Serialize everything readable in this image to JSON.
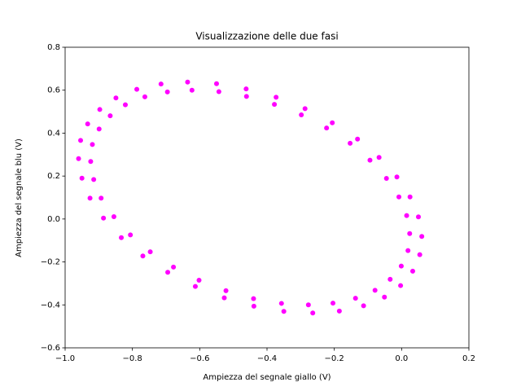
{
  "chart_data": {
    "type": "scatter",
    "title": "Visualizzazione delle due fasi",
    "xlabel": "Ampiezza del segnale giallo (V)",
    "ylabel": "Ampiezza del segnale blu (V)",
    "color": "#ff00ff",
    "xlim": [
      -1.0,
      0.2
    ],
    "ylim": [
      -0.6,
      0.8
    ],
    "xticks": [
      {
        "value": -1.0,
        "label": "−1.0"
      },
      {
        "value": -0.8,
        "label": "−0.8"
      },
      {
        "value": -0.6,
        "label": "−0.6"
      },
      {
        "value": -0.4,
        "label": "−0.4"
      },
      {
        "value": -0.2,
        "label": "−0.2"
      },
      {
        "value": 0.0,
        "label": "0.0"
      },
      0.2
    ],
    "yticks": [
      {
        "value": -0.6,
        "label": "−0.6"
      },
      {
        "value": -0.4,
        "label": "−0.4"
      },
      {
        "value": -0.2,
        "label": "−0.2"
      },
      {
        "value": 0.0,
        "label": "0.0"
      },
      0.2,
      0.4,
      0.6,
      0.8
    ],
    "x": [
      0.05,
      0.025,
      -0.014,
      -0.067,
      -0.131,
      -0.206,
      -0.287,
      -0.373,
      -0.462,
      -0.55,
      -0.636,
      -0.715,
      -0.787,
      -0.849,
      -0.897,
      -0.933,
      -0.954,
      -0.96,
      -0.95,
      -0.926,
      -0.886,
      -0.833,
      -0.769,
      -0.695,
      -0.613,
      -0.527,
      -0.439,
      -0.35,
      -0.264,
      -0.185,
      -0.113,
      -0.051,
      -0.003,
      0.033,
      0.054,
      0.06,
      0.015,
      -0.008,
      -0.045,
      -0.094,
      -0.153,
      -0.223,
      -0.298,
      -0.378,
      -0.461,
      -0.543,
      -0.623,
      -0.696,
      -0.763,
      -0.821,
      -0.866,
      -0.899,
      -0.919,
      -0.924,
      -0.915,
      -0.893,
      -0.855,
      -0.806,
      -0.747,
      -0.678,
      -0.602,
      -0.522,
      -0.44,
      -0.357,
      -0.277,
      -0.204,
      -0.137,
      -0.079,
      -0.034,
      -0.001,
      0.019,
      0.024
    ],
    "y": [
      0.01,
      0.103,
      0.196,
      0.287,
      0.372,
      0.448,
      0.514,
      0.567,
      0.606,
      0.63,
      0.638,
      0.629,
      0.604,
      0.564,
      0.51,
      0.443,
      0.366,
      0.281,
      0.19,
      0.097,
      0.004,
      -0.087,
      -0.172,
      -0.248,
      -0.314,
      -0.367,
      -0.406,
      -0.43,
      -0.438,
      -0.429,
      -0.404,
      -0.364,
      -0.31,
      -0.243,
      -0.166,
      -0.081,
      0.016,
      0.103,
      0.189,
      0.274,
      0.353,
      0.424,
      0.485,
      0.534,
      0.571,
      0.593,
      0.6,
      0.592,
      0.569,
      0.532,
      0.481,
      0.419,
      0.347,
      0.268,
      0.184,
      0.097,
      0.011,
      -0.074,
      -0.153,
      -0.224,
      -0.285,
      -0.334,
      -0.371,
      -0.393,
      -0.4,
      -0.392,
      -0.369,
      -0.332,
      -0.281,
      -0.219,
      -0.147,
      -0.068
    ]
  }
}
